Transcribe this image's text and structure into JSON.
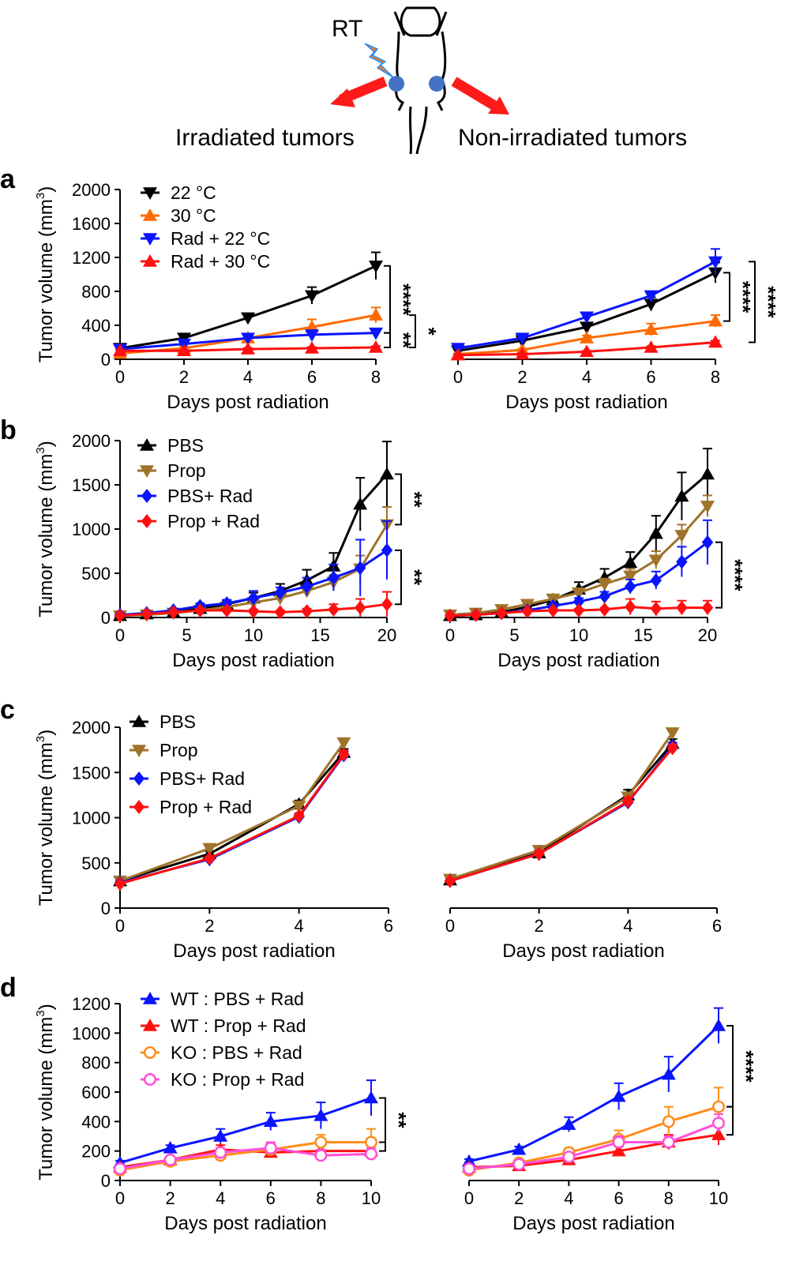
{
  "header": {
    "rt_label": "RT",
    "left_caption": "Irradiated tumors",
    "right_caption": "Non-irradiated tumors"
  },
  "colors": {
    "black": "#000000",
    "orange": "#ff6a00",
    "blue": "#0a14ff",
    "red": "#ff1010",
    "brown": "#a0732a",
    "ko_orange": "#ff8c1a",
    "pink": "#ff4fd8",
    "arrow": "#ff1a1a",
    "tumor": "#4472c4",
    "lightning": "#ed7d31"
  },
  "chart_data": [
    {
      "panel": "a",
      "side": "left",
      "type": "line",
      "ylabel": "Tumor volume (mm3)",
      "xlabel": "Days post radiation",
      "xlim": [
        0,
        8
      ],
      "xticks": [
        0,
        2,
        4,
        6,
        8
      ],
      "ylim": [
        0,
        2000
      ],
      "yticks": [
        0,
        400,
        800,
        1200,
        1600,
        2000
      ],
      "legend": "top-left",
      "x": [
        0,
        2,
        4,
        6,
        8
      ],
      "series": [
        {
          "name": "22 °C",
          "color": "#000000",
          "marker": "triangle-down",
          "values": [
            130,
            250,
            490,
            750,
            1100
          ],
          "err": [
            20,
            30,
            50,
            100,
            160
          ]
        },
        {
          "name": "30 °C",
          "color": "#ff6a00",
          "marker": "triangle-up",
          "values": [
            70,
            130,
            250,
            380,
            520
          ],
          "err": [
            15,
            20,
            30,
            90,
            90
          ]
        },
        {
          "name": "Rad + 22 °C",
          "color": "#0a14ff",
          "marker": "triangle-down",
          "values": [
            120,
            180,
            250,
            290,
            310
          ],
          "err": [
            15,
            20,
            30,
            30,
            30
          ]
        },
        {
          "name": "Rad + 30 °C",
          "color": "#ff1010",
          "marker": "triangle-up",
          "values": [
            100,
            100,
            120,
            130,
            140
          ],
          "err": [
            10,
            10,
            15,
            15,
            15
          ]
        }
      ],
      "significance": [
        {
          "between": [
            0,
            2
          ],
          "label": "****",
          "nesting": "inner"
        },
        {
          "between": [
            2,
            3
          ],
          "label": "**",
          "nesting": "inner"
        },
        {
          "between": [
            1,
            3
          ],
          "label": "*",
          "nesting": "outer"
        }
      ]
    },
    {
      "panel": "",
      "side": "right",
      "type": "line",
      "xlabel": "Days post radiation",
      "xlim": [
        0,
        8
      ],
      "xticks": [
        0,
        2,
        4,
        6,
        8
      ],
      "ylim": [
        0,
        2000
      ],
      "yticks": [],
      "x": [
        0,
        2,
        4,
        6,
        8
      ],
      "series": [
        {
          "name": "22 °C",
          "color": "#000000",
          "marker": "triangle-down",
          "values": [
            100,
            220,
            380,
            650,
            1020
          ],
          "err": [
            15,
            25,
            50,
            80,
            120
          ]
        },
        {
          "name": "30 °C",
          "color": "#ff6a00",
          "marker": "triangle-up",
          "values": [
            60,
            110,
            250,
            350,
            450
          ],
          "err": [
            10,
            15,
            30,
            70,
            70
          ]
        },
        {
          "name": "Rad + 22 °C",
          "color": "#0a14ff",
          "marker": "triangle-down",
          "values": [
            130,
            250,
            500,
            750,
            1150
          ],
          "err": [
            15,
            25,
            30,
            40,
            150
          ]
        },
        {
          "name": "Rad + 30 °C",
          "color": "#ff1010",
          "marker": "triangle-up",
          "values": [
            50,
            60,
            90,
            140,
            200
          ],
          "err": [
            10,
            10,
            10,
            15,
            20
          ]
        }
      ],
      "significance": [
        {
          "between": [
            0,
            1
          ],
          "label": "****",
          "nesting": "inner"
        },
        {
          "between": [
            2,
            3
          ],
          "label": "****",
          "nesting": "outer"
        }
      ]
    },
    {
      "panel": "b",
      "side": "left",
      "type": "line",
      "ylabel": "Tumor volume (mm3)",
      "xlabel": "Days post radiation",
      "xlim": [
        0,
        20
      ],
      "xticks": [
        0,
        5,
        10,
        15,
        20
      ],
      "ylim": [
        0,
        2000
      ],
      "yticks": [
        0,
        500,
        1000,
        1500,
        2000
      ],
      "legend": "top-left",
      "x": [
        0,
        2,
        4,
        6,
        8,
        10,
        12,
        14,
        16,
        18,
        20
      ],
      "series": [
        {
          "name": "PBS",
          "color": "#000000",
          "marker": "triangle-up",
          "values": [
            20,
            40,
            60,
            100,
            150,
            220,
            300,
            420,
            580,
            1280,
            1620
          ],
          "err": [
            10,
            10,
            20,
            30,
            40,
            60,
            80,
            120,
            150,
            300,
            370
          ]
        },
        {
          "name": "Prop",
          "color": "#a0732a",
          "marker": "triangle-down",
          "values": [
            20,
            30,
            50,
            80,
            120,
            170,
            220,
            300,
            400,
            550,
            1050
          ],
          "err": [
            10,
            10,
            15,
            20,
            30,
            40,
            50,
            60,
            80,
            150,
            200
          ]
        },
        {
          "name": "PBS+ Rad",
          "color": "#0a14ff",
          "marker": "diamond",
          "values": [
            30,
            50,
            80,
            130,
            160,
            220,
            280,
            350,
            450,
            560,
            760
          ],
          "err": [
            10,
            15,
            20,
            30,
            40,
            80,
            60,
            100,
            150,
            320,
            330
          ]
        },
        {
          "name": "Prop + Rad",
          "color": "#ff1010",
          "marker": "diamond",
          "values": [
            20,
            40,
            60,
            80,
            80,
            70,
            60,
            70,
            90,
            110,
            150
          ],
          "err": [
            10,
            10,
            15,
            20,
            20,
            20,
            20,
            30,
            60,
            100,
            140
          ]
        }
      ],
      "significance": [
        {
          "between": [
            0,
            1
          ],
          "label": "**",
          "nesting": "inner"
        },
        {
          "between": [
            2,
            3
          ],
          "label": "**",
          "nesting": "inner"
        }
      ]
    },
    {
      "panel": "",
      "side": "right",
      "type": "line",
      "xlabel": "Days post radiation",
      "xlim": [
        0,
        20
      ],
      "xticks": [
        0,
        5,
        10,
        15,
        20
      ],
      "ylim": [
        0,
        2000
      ],
      "yticks": [],
      "x": [
        0,
        2,
        4,
        6,
        8,
        10,
        12,
        14,
        16,
        18,
        20
      ],
      "series": [
        {
          "name": "PBS",
          "color": "#000000",
          "marker": "triangle-up",
          "values": [
            20,
            30,
            60,
            120,
            200,
            320,
            450,
            620,
            950,
            1370,
            1620
          ],
          "err": [
            10,
            10,
            20,
            30,
            40,
            80,
            100,
            120,
            200,
            270,
            290
          ]
        },
        {
          "name": "Prop",
          "color": "#a0732a",
          "marker": "triangle-down",
          "values": [
            30,
            50,
            90,
            150,
            210,
            280,
            380,
            470,
            650,
            930,
            1260
          ],
          "err": [
            10,
            10,
            20,
            30,
            40,
            50,
            60,
            80,
            100,
            120,
            120
          ]
        },
        {
          "name": "PBS+ Rad",
          "color": "#0a14ff",
          "marker": "diamond",
          "values": [
            20,
            30,
            50,
            80,
            130,
            180,
            240,
            350,
            420,
            630,
            850
          ],
          "err": [
            10,
            10,
            15,
            20,
            30,
            40,
            50,
            80,
            100,
            170,
            250
          ]
        },
        {
          "name": "Prop + Rad",
          "color": "#ff1010",
          "marker": "diamond",
          "values": [
            20,
            30,
            50,
            70,
            80,
            80,
            90,
            120,
            100,
            110,
            110
          ],
          "err": [
            10,
            10,
            10,
            15,
            20,
            20,
            20,
            90,
            80,
            80,
            80
          ]
        }
      ],
      "significance": [
        {
          "between": [
            2,
            3
          ],
          "label": "****",
          "nesting": "inner"
        }
      ]
    },
    {
      "panel": "c",
      "side": "left",
      "type": "line",
      "ylabel": "Tumor volume (mm3)",
      "xlabel": "Days post radiation",
      "xlim": [
        0,
        6
      ],
      "xticks": [
        0,
        2,
        4,
        6
      ],
      "ylim": [
        0,
        2000
      ],
      "yticks": [
        0,
        500,
        1000,
        1500,
        2000
      ],
      "legend": "top-left",
      "x": [
        0,
        2,
        4,
        5
      ],
      "series": [
        {
          "name": "PBS",
          "color": "#000000",
          "marker": "triangle-up",
          "values": [
            300,
            600,
            1150,
            1720
          ],
          "err": [
            20,
            30,
            40,
            40
          ]
        },
        {
          "name": "Prop",
          "color": "#a0732a",
          "marker": "triangle-down",
          "values": [
            300,
            660,
            1130,
            1830
          ],
          "err": [
            20,
            30,
            40,
            40
          ]
        },
        {
          "name": "PBS+ Rad",
          "color": "#0a14ff",
          "marker": "diamond",
          "values": [
            280,
            540,
            1010,
            1690
          ],
          "err": [
            20,
            20,
            30,
            40
          ]
        },
        {
          "name": "Prop + Rad",
          "color": "#ff1010",
          "marker": "diamond",
          "values": [
            270,
            550,
            1020,
            1700
          ],
          "err": [
            20,
            20,
            30,
            40
          ]
        }
      ],
      "significance": []
    },
    {
      "panel": "",
      "side": "right",
      "type": "line",
      "xlabel": "Days post radiation",
      "xlim": [
        0,
        6
      ],
      "xticks": [
        0,
        2,
        4,
        6
      ],
      "ylim": [
        0,
        2000
      ],
      "yticks": [],
      "x": [
        0,
        2,
        4,
        5
      ],
      "series": [
        {
          "name": "PBS",
          "color": "#000000",
          "marker": "triangle-up",
          "values": [
            310,
            610,
            1250,
            1820
          ],
          "err": [
            20,
            30,
            60,
            50
          ]
        },
        {
          "name": "Prop",
          "color": "#a0732a",
          "marker": "triangle-down",
          "values": [
            320,
            640,
            1230,
            1940
          ],
          "err": [
            20,
            30,
            50,
            40
          ]
        },
        {
          "name": "PBS+ Rad",
          "color": "#0a14ff",
          "marker": "diamond",
          "values": [
            300,
            600,
            1170,
            1790
          ],
          "err": [
            20,
            30,
            40,
            40
          ]
        },
        {
          "name": "Prop + Rad",
          "color": "#ff1010",
          "marker": "diamond",
          "values": [
            300,
            600,
            1180,
            1770
          ],
          "err": [
            20,
            30,
            40,
            40
          ]
        }
      ],
      "significance": []
    },
    {
      "panel": "d",
      "side": "left",
      "type": "line",
      "ylabel": "Tumor volume (mm3)",
      "xlabel": "Days post radiation",
      "xlim": [
        0,
        10
      ],
      "xticks": [
        0,
        2,
        4,
        6,
        8,
        10
      ],
      "ylim": [
        0,
        1200
      ],
      "yticks": [
        0,
        200,
        400,
        600,
        800,
        1000,
        1200
      ],
      "legend": "top-left",
      "x": [
        0,
        2,
        4,
        6,
        8,
        10
      ],
      "series": [
        {
          "name": "WT : PBS + Rad",
          "color": "#0a14ff",
          "marker": "triangle-up",
          "values": [
            120,
            220,
            300,
            400,
            440,
            560
          ],
          "err": [
            15,
            20,
            50,
            60,
            90,
            120
          ]
        },
        {
          "name": "WT : Prop + Rad",
          "color": "#ff1010",
          "marker": "triangle-up",
          "values": [
            90,
            140,
            210,
            190,
            200,
            200
          ],
          "err": [
            15,
            20,
            30,
            30,
            40,
            40
          ]
        },
        {
          "name": "KO : PBS + Rad",
          "color": "#ff8c1a",
          "marker": "circle-open",
          "values": [
            70,
            130,
            170,
            210,
            260,
            260
          ],
          "err": [
            10,
            20,
            30,
            40,
            50,
            90
          ]
        },
        {
          "name": "KO : Prop + Rad",
          "color": "#ff4fd8",
          "marker": "circle-open",
          "values": [
            80,
            140,
            190,
            220,
            170,
            180
          ],
          "err": [
            10,
            20,
            30,
            40,
            40,
            40
          ]
        }
      ],
      "significance": [
        {
          "between": [
            0,
            2
          ],
          "label": "**",
          "nesting": "inner"
        },
        {
          "between": [
            2,
            1
          ],
          "label": "",
          "nesting": "inner"
        }
      ]
    },
    {
      "panel": "",
      "side": "right",
      "type": "line",
      "xlabel": "Days post radiation",
      "xlim": [
        0,
        10
      ],
      "xticks": [
        0,
        2,
        4,
        6,
        8,
        10
      ],
      "ylim": [
        0,
        1200
      ],
      "yticks": [],
      "x": [
        0,
        2,
        4,
        6,
        8,
        10
      ],
      "series": [
        {
          "name": "WT : PBS + Rad",
          "color": "#0a14ff",
          "marker": "triangle-up",
          "values": [
            130,
            210,
            380,
            570,
            720,
            1050
          ],
          "err": [
            15,
            20,
            50,
            90,
            120,
            120
          ]
        },
        {
          "name": "WT : Prop + Rad",
          "color": "#ff1010",
          "marker": "triangle-up",
          "values": [
            90,
            100,
            140,
            200,
            260,
            310
          ],
          "err": [
            10,
            15,
            20,
            30,
            50,
            70
          ]
        },
        {
          "name": "KO : PBS + Rad",
          "color": "#ff8c1a",
          "marker": "circle-open",
          "values": [
            70,
            120,
            190,
            280,
            400,
            500
          ],
          "err": [
            10,
            20,
            30,
            60,
            100,
            130
          ]
        },
        {
          "name": "KO : Prop + Rad",
          "color": "#ff4fd8",
          "marker": "circle-open",
          "values": [
            80,
            110,
            160,
            260,
            260,
            390
          ],
          "err": [
            10,
            15,
            20,
            40,
            40,
            60
          ]
        }
      ],
      "significance": [
        {
          "between": [
            0,
            2
          ],
          "label": "****",
          "nesting": "inner"
        },
        {
          "between": [
            2,
            1
          ],
          "label": "",
          "nesting": "inner"
        }
      ]
    }
  ]
}
